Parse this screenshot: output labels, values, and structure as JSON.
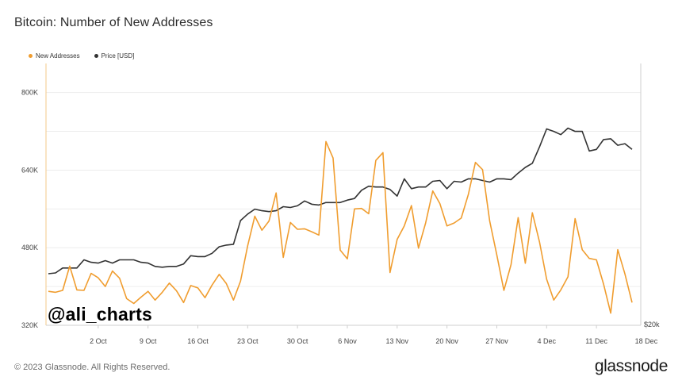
{
  "header": {
    "title": "Bitcoin: Number of New Addresses"
  },
  "footer": {
    "copyright": "© 2023 Glassnode. All Rights Reserved.",
    "brand": "glassnode"
  },
  "watermark": "@ali_charts",
  "colors": {
    "new_addresses": "#f09d2f",
    "price": "#333333",
    "grid": "#ededed",
    "axis": "#cfcfcf"
  },
  "chart_data": {
    "type": "line",
    "title": "Bitcoin: Number of New Addresses",
    "xlabel": "",
    "ylabel": "",
    "ylim": [
      320000,
      860000
    ],
    "y_ticks": [
      {
        "value": 320000,
        "label": "320K"
      },
      {
        "value": 480000,
        "label": "480K"
      },
      {
        "value": 640000,
        "label": "640K"
      },
      {
        "value": 800000,
        "label": "800K"
      }
    ],
    "y2_label": "$20k",
    "legend_position": "top-left",
    "grid": true,
    "x_ticks": [
      {
        "index": 7,
        "label": "2 Oct"
      },
      {
        "index": 14,
        "label": "9 Oct"
      },
      {
        "index": 21,
        "label": "16 Oct"
      },
      {
        "index": 28,
        "label": "23 Oct"
      },
      {
        "index": 35,
        "label": "30 Oct"
      },
      {
        "index": 42,
        "label": "6 Nov"
      },
      {
        "index": 49,
        "label": "13 Nov"
      },
      {
        "index": 56,
        "label": "20 Nov"
      },
      {
        "index": 63,
        "label": "27 Nov"
      },
      {
        "index": 70,
        "label": "4 Dec"
      },
      {
        "index": 77,
        "label": "11 Dec"
      },
      {
        "index": 84,
        "label": "18 Dec"
      }
    ],
    "x_start": "25 Sep",
    "x_end": "18 Dec",
    "series": [
      {
        "name": "New Addresses",
        "axis": "left",
        "values": [
          390000,
          388000,
          392000,
          442000,
          393000,
          392000,
          427000,
          418000,
          400000,
          432000,
          417000,
          375000,
          365000,
          378000,
          390000,
          372000,
          388000,
          407000,
          391000,
          367000,
          402000,
          397000,
          377000,
          403000,
          425000,
          406000,
          372000,
          411000,
          484000,
          545000,
          516000,
          535000,
          593000,
          460000,
          532000,
          518000,
          519000,
          513000,
          506000,
          699000,
          665000,
          475000,
          457000,
          560000,
          561000,
          550000,
          660000,
          676000,
          429000,
          497000,
          525000,
          567000,
          479000,
          531000,
          597000,
          571000,
          525000,
          531000,
          541000,
          590000,
          656000,
          641000,
          535000,
          465000,
          392000,
          445000,
          542000,
          448000,
          552000,
          492000,
          415000,
          372000,
          393000,
          420000,
          540000,
          476000,
          458000,
          455000,
          405000,
          345000,
          476000,
          426000,
          367000
        ]
      },
      {
        "name": "Price [USD]",
        "axis": "right",
        "values": [
          26300,
          26400,
          27000,
          27000,
          27000,
          28000,
          27700,
          27600,
          27900,
          27600,
          28000,
          28000,
          28000,
          27700,
          27600,
          27200,
          27100,
          27200,
          27200,
          27500,
          28500,
          28400,
          28400,
          28800,
          29600,
          29800,
          29900,
          32800,
          33600,
          34200,
          34000,
          33900,
          34000,
          34500,
          34400,
          34600,
          35200,
          34800,
          34700,
          35000,
          35000,
          35000,
          35300,
          35500,
          36500,
          37000,
          36900,
          36900,
          36600,
          35800,
          37900,
          36700,
          36900,
          36900,
          37600,
          37700,
          36700,
          37600,
          37500,
          37900,
          37900,
          37700,
          37500,
          37900,
          37900,
          37800,
          38600,
          39300,
          39800,
          41800,
          44000,
          43700,
          43300,
          44100,
          43700,
          43700,
          41300,
          41500,
          42700,
          42800,
          42000,
          42200,
          41500
        ]
      }
    ]
  }
}
